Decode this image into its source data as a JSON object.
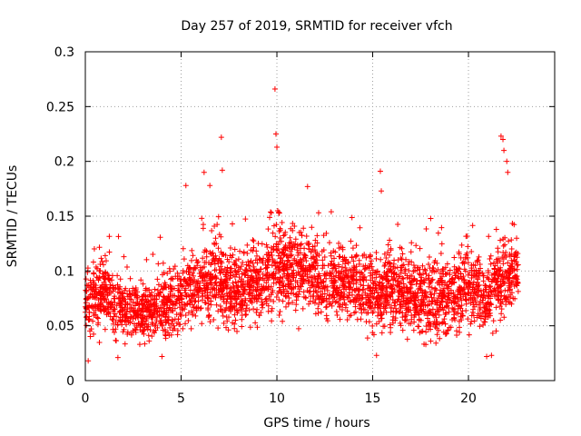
{
  "chart_data": {
    "type": "scatter",
    "title": "Day 257 of 2019, SRMTID for receiver vfch",
    "xlabel": "GPS time / hours",
    "ylabel": "SRMTID / TECUs",
    "xlim": [
      0,
      24.5
    ],
    "ylim": [
      0,
      0.3
    ],
    "xticks": [
      0,
      5,
      10,
      15,
      20
    ],
    "xtick_labels": [
      "0",
      "5",
      "10",
      "15",
      "20"
    ],
    "yticks": [
      0,
      0.05,
      0.1,
      0.15,
      0.2,
      0.25,
      0.3
    ],
    "ytick_labels": [
      "0",
      "0.05",
      "0.1",
      "0.15",
      "0.2",
      "0.25",
      "0.3"
    ],
    "grid": true,
    "marker": "+",
    "series_color": "#ff0000",
    "notable_points": [
      {
        "x": 0.15,
        "y": 0.018
      },
      {
        "x": 9.9,
        "y": 0.266
      },
      {
        "x": 9.95,
        "y": 0.225
      },
      {
        "x": 10.0,
        "y": 0.213
      },
      {
        "x": 7.1,
        "y": 0.222
      },
      {
        "x": 7.15,
        "y": 0.192
      },
      {
        "x": 6.2,
        "y": 0.19
      },
      {
        "x": 6.5,
        "y": 0.178
      },
      {
        "x": 5.25,
        "y": 0.178
      },
      {
        "x": 11.6,
        "y": 0.177
      },
      {
        "x": 15.4,
        "y": 0.191
      },
      {
        "x": 15.45,
        "y": 0.173
      },
      {
        "x": 21.7,
        "y": 0.223
      },
      {
        "x": 21.8,
        "y": 0.22
      },
      {
        "x": 21.85,
        "y": 0.21
      },
      {
        "x": 22.0,
        "y": 0.2
      },
      {
        "x": 22.05,
        "y": 0.19
      },
      {
        "x": 1.7,
        "y": 0.021
      },
      {
        "x": 4.0,
        "y": 0.022
      },
      {
        "x": 15.2,
        "y": 0.023
      },
      {
        "x": 20.95,
        "y": 0.022
      },
      {
        "x": 21.2,
        "y": 0.023
      }
    ],
    "envelope": [
      {
        "x": 0.0,
        "center": 0.072,
        "spread": 0.02
      },
      {
        "x": 1.0,
        "center": 0.08,
        "spread": 0.02
      },
      {
        "x": 2.0,
        "center": 0.065,
        "spread": 0.018
      },
      {
        "x": 3.0,
        "center": 0.06,
        "spread": 0.017
      },
      {
        "x": 4.0,
        "center": 0.068,
        "spread": 0.02
      },
      {
        "x": 5.0,
        "center": 0.075,
        "spread": 0.022
      },
      {
        "x": 6.0,
        "center": 0.085,
        "spread": 0.025
      },
      {
        "x": 7.0,
        "center": 0.09,
        "spread": 0.027
      },
      {
        "x": 8.0,
        "center": 0.082,
        "spread": 0.022
      },
      {
        "x": 9.0,
        "center": 0.09,
        "spread": 0.024
      },
      {
        "x": 10.0,
        "center": 0.105,
        "spread": 0.027
      },
      {
        "x": 11.0,
        "center": 0.1,
        "spread": 0.026
      },
      {
        "x": 12.0,
        "center": 0.095,
        "spread": 0.025
      },
      {
        "x": 13.0,
        "center": 0.085,
        "spread": 0.022
      },
      {
        "x": 14.0,
        "center": 0.088,
        "spread": 0.023
      },
      {
        "x": 15.0,
        "center": 0.075,
        "spread": 0.022
      },
      {
        "x": 16.0,
        "center": 0.085,
        "spread": 0.024
      },
      {
        "x": 17.0,
        "center": 0.078,
        "spread": 0.024
      },
      {
        "x": 18.0,
        "center": 0.07,
        "spread": 0.023
      },
      {
        "x": 19.0,
        "center": 0.075,
        "spread": 0.024
      },
      {
        "x": 20.0,
        "center": 0.085,
        "spread": 0.024
      },
      {
        "x": 21.0,
        "center": 0.078,
        "spread": 0.022
      },
      {
        "x": 22.0,
        "center": 0.095,
        "spread": 0.025
      },
      {
        "x": 22.6,
        "center": 0.1,
        "spread": 0.02
      }
    ],
    "x_range_data": [
      0.0,
      22.6
    ],
    "approx_point_count": 3200
  }
}
